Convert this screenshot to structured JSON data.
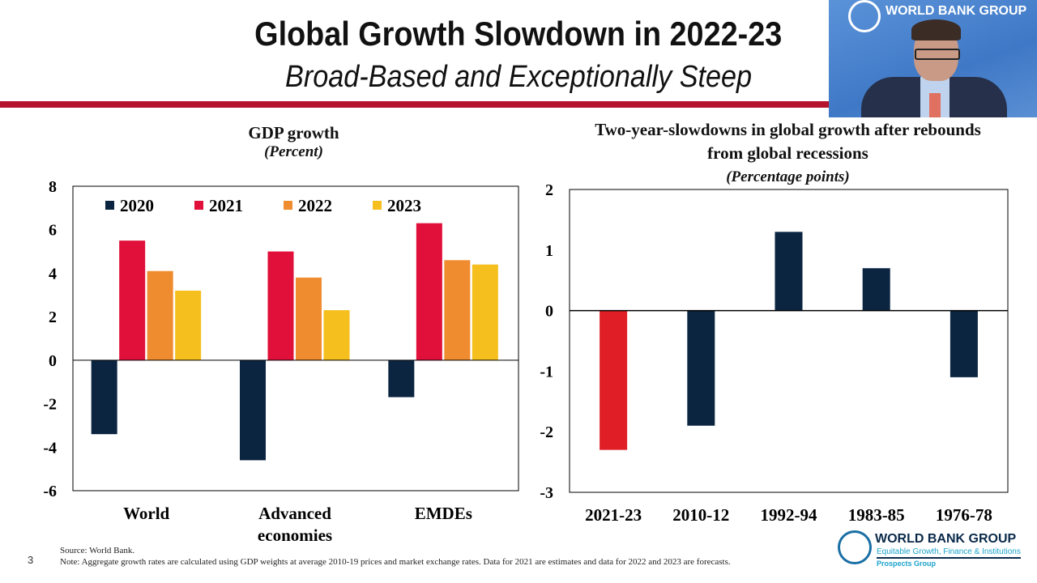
{
  "slide": {
    "title": "Global Growth Slowdown in 2022-23",
    "subtitle": "Broad-Based and Exceptionally Steep",
    "page_number": "3",
    "source": "Source: World Bank.",
    "note": "Note: Aggregate growth rates are calculated using GDP weights at average 2010-19 prices and market exchange rates. Data for 2021 are estimates and data for 2022 and 2023 are forecasts.",
    "accent_color": "#b5122e"
  },
  "video": {
    "brand": "WORLD BANK GROUP"
  },
  "logo": {
    "name": "WORLD BANK GROUP",
    "tagline": "Equitable Growth, Finance & Institutions",
    "group": "Prospects Group"
  },
  "chart_data": [
    {
      "type": "bar",
      "title": "GDP growth",
      "subtitle": "(Percent)",
      "categories": [
        "World",
        "Advanced economies",
        "EMDEs"
      ],
      "ylim": [
        -6,
        8
      ],
      "yticks": [
        8,
        6,
        4,
        2,
        0,
        -2,
        -4,
        -6
      ],
      "legend": "top",
      "grid": false,
      "series": [
        {
          "name": "2020",
          "color": "#0b2440",
          "values": [
            -3.4,
            -4.6,
            -1.7
          ]
        },
        {
          "name": "2021",
          "color": "#e0103a",
          "values": [
            5.5,
            5.0,
            6.3
          ]
        },
        {
          "name": "2022",
          "color": "#f08c30",
          "values": [
            4.1,
            3.8,
            4.6
          ]
        },
        {
          "name": "2023",
          "color": "#f5bf1e",
          "values": [
            3.2,
            2.3,
            4.4
          ]
        }
      ]
    },
    {
      "type": "bar",
      "title": "Two-year-slowdowns in global growth after rebounds from global recessions",
      "subtitle": "(Percentage points)",
      "categories": [
        "2021-23",
        "2010-12",
        "1992-94",
        "1983-85",
        "1976-78"
      ],
      "values": [
        -2.3,
        -1.9,
        1.3,
        0.7,
        -1.1
      ],
      "colors": [
        "#e01e26",
        "#0b2440",
        "#0b2440",
        "#0b2440",
        "#0b2440"
      ],
      "ylim": [
        -3,
        2
      ],
      "yticks": [
        2,
        1,
        0,
        -1,
        -2,
        -3
      ],
      "grid": false
    }
  ]
}
